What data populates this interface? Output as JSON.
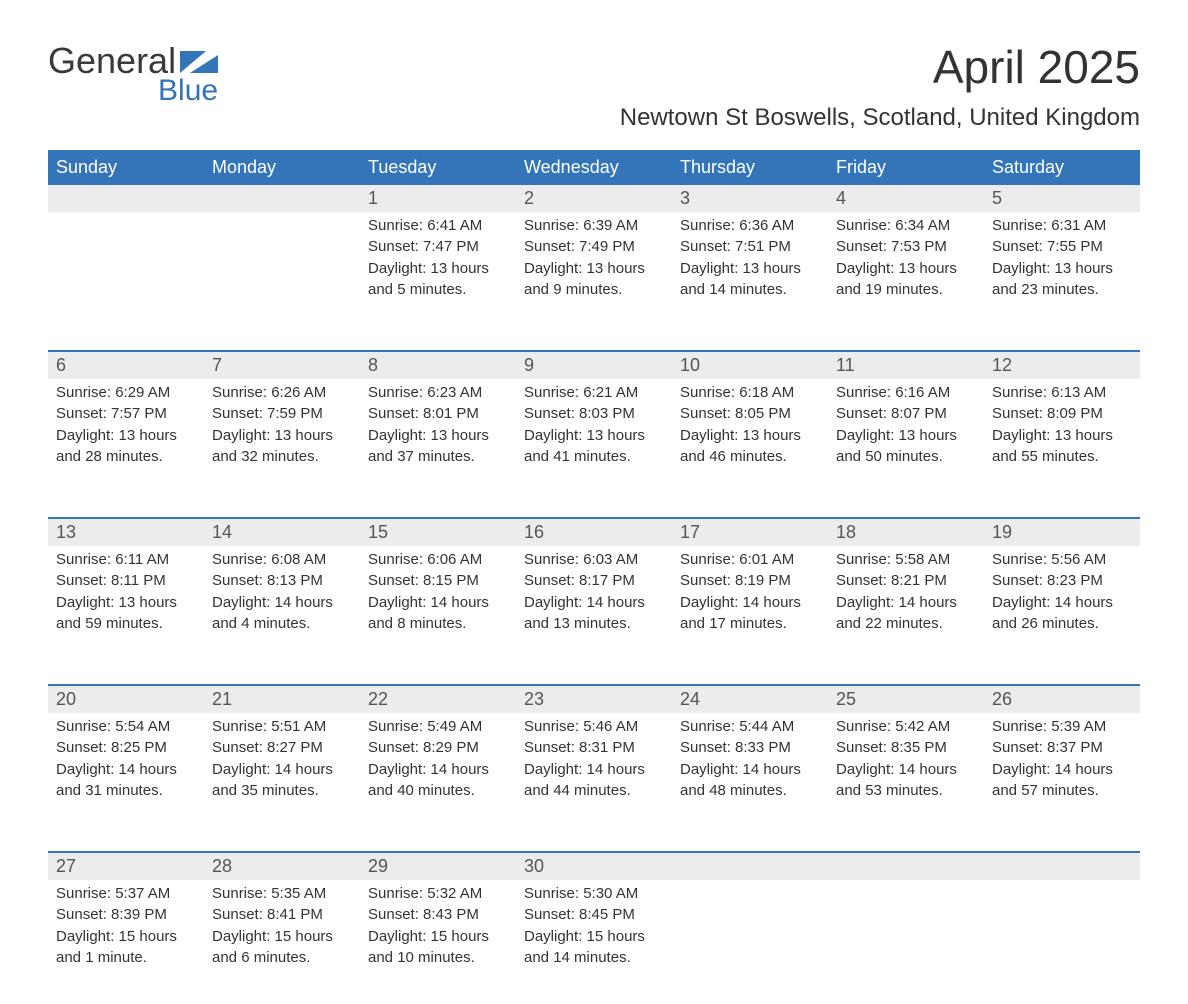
{
  "logo": {
    "line1": "General",
    "line2": "Blue"
  },
  "title": "April 2025",
  "location": "Newtown St Boswells, Scotland, United Kingdom",
  "day_names": [
    "Sunday",
    "Monday",
    "Tuesday",
    "Wednesday",
    "Thursday",
    "Friday",
    "Saturday"
  ],
  "colors": {
    "header_bg": "#3474b8",
    "header_text": "#ffffff",
    "daynum_bg": "#ececec",
    "text": "#333333",
    "logo_blue": "#3474b8",
    "week_divider": "#3474b8",
    "background": "#ffffff"
  },
  "typography": {
    "title_fontsize": 46,
    "location_fontsize": 24,
    "dayhead_fontsize": 18,
    "daynum_fontsize": 18,
    "body_fontsize": 15
  },
  "layout": {
    "columns": 7,
    "rows": 5,
    "leading_blanks": 2
  },
  "weeks": [
    [
      null,
      null,
      {
        "n": "1",
        "sunrise": "Sunrise: 6:41 AM",
        "sunset": "Sunset: 7:47 PM",
        "dl1": "Daylight: 13 hours",
        "dl2": "and 5 minutes."
      },
      {
        "n": "2",
        "sunrise": "Sunrise: 6:39 AM",
        "sunset": "Sunset: 7:49 PM",
        "dl1": "Daylight: 13 hours",
        "dl2": "and 9 minutes."
      },
      {
        "n": "3",
        "sunrise": "Sunrise: 6:36 AM",
        "sunset": "Sunset: 7:51 PM",
        "dl1": "Daylight: 13 hours",
        "dl2": "and 14 minutes."
      },
      {
        "n": "4",
        "sunrise": "Sunrise: 6:34 AM",
        "sunset": "Sunset: 7:53 PM",
        "dl1": "Daylight: 13 hours",
        "dl2": "and 19 minutes."
      },
      {
        "n": "5",
        "sunrise": "Sunrise: 6:31 AM",
        "sunset": "Sunset: 7:55 PM",
        "dl1": "Daylight: 13 hours",
        "dl2": "and 23 minutes."
      }
    ],
    [
      {
        "n": "6",
        "sunrise": "Sunrise: 6:29 AM",
        "sunset": "Sunset: 7:57 PM",
        "dl1": "Daylight: 13 hours",
        "dl2": "and 28 minutes."
      },
      {
        "n": "7",
        "sunrise": "Sunrise: 6:26 AM",
        "sunset": "Sunset: 7:59 PM",
        "dl1": "Daylight: 13 hours",
        "dl2": "and 32 minutes."
      },
      {
        "n": "8",
        "sunrise": "Sunrise: 6:23 AM",
        "sunset": "Sunset: 8:01 PM",
        "dl1": "Daylight: 13 hours",
        "dl2": "and 37 minutes."
      },
      {
        "n": "9",
        "sunrise": "Sunrise: 6:21 AM",
        "sunset": "Sunset: 8:03 PM",
        "dl1": "Daylight: 13 hours",
        "dl2": "and 41 minutes."
      },
      {
        "n": "10",
        "sunrise": "Sunrise: 6:18 AM",
        "sunset": "Sunset: 8:05 PM",
        "dl1": "Daylight: 13 hours",
        "dl2": "and 46 minutes."
      },
      {
        "n": "11",
        "sunrise": "Sunrise: 6:16 AM",
        "sunset": "Sunset: 8:07 PM",
        "dl1": "Daylight: 13 hours",
        "dl2": "and 50 minutes."
      },
      {
        "n": "12",
        "sunrise": "Sunrise: 6:13 AM",
        "sunset": "Sunset: 8:09 PM",
        "dl1": "Daylight: 13 hours",
        "dl2": "and 55 minutes."
      }
    ],
    [
      {
        "n": "13",
        "sunrise": "Sunrise: 6:11 AM",
        "sunset": "Sunset: 8:11 PM",
        "dl1": "Daylight: 13 hours",
        "dl2": "and 59 minutes."
      },
      {
        "n": "14",
        "sunrise": "Sunrise: 6:08 AM",
        "sunset": "Sunset: 8:13 PM",
        "dl1": "Daylight: 14 hours",
        "dl2": "and 4 minutes."
      },
      {
        "n": "15",
        "sunrise": "Sunrise: 6:06 AM",
        "sunset": "Sunset: 8:15 PM",
        "dl1": "Daylight: 14 hours",
        "dl2": "and 8 minutes."
      },
      {
        "n": "16",
        "sunrise": "Sunrise: 6:03 AM",
        "sunset": "Sunset: 8:17 PM",
        "dl1": "Daylight: 14 hours",
        "dl2": "and 13 minutes."
      },
      {
        "n": "17",
        "sunrise": "Sunrise: 6:01 AM",
        "sunset": "Sunset: 8:19 PM",
        "dl1": "Daylight: 14 hours",
        "dl2": "and 17 minutes."
      },
      {
        "n": "18",
        "sunrise": "Sunrise: 5:58 AM",
        "sunset": "Sunset: 8:21 PM",
        "dl1": "Daylight: 14 hours",
        "dl2": "and 22 minutes."
      },
      {
        "n": "19",
        "sunrise": "Sunrise: 5:56 AM",
        "sunset": "Sunset: 8:23 PM",
        "dl1": "Daylight: 14 hours",
        "dl2": "and 26 minutes."
      }
    ],
    [
      {
        "n": "20",
        "sunrise": "Sunrise: 5:54 AM",
        "sunset": "Sunset: 8:25 PM",
        "dl1": "Daylight: 14 hours",
        "dl2": "and 31 minutes."
      },
      {
        "n": "21",
        "sunrise": "Sunrise: 5:51 AM",
        "sunset": "Sunset: 8:27 PM",
        "dl1": "Daylight: 14 hours",
        "dl2": "and 35 minutes."
      },
      {
        "n": "22",
        "sunrise": "Sunrise: 5:49 AM",
        "sunset": "Sunset: 8:29 PM",
        "dl1": "Daylight: 14 hours",
        "dl2": "and 40 minutes."
      },
      {
        "n": "23",
        "sunrise": "Sunrise: 5:46 AM",
        "sunset": "Sunset: 8:31 PM",
        "dl1": "Daylight: 14 hours",
        "dl2": "and 44 minutes."
      },
      {
        "n": "24",
        "sunrise": "Sunrise: 5:44 AM",
        "sunset": "Sunset: 8:33 PM",
        "dl1": "Daylight: 14 hours",
        "dl2": "and 48 minutes."
      },
      {
        "n": "25",
        "sunrise": "Sunrise: 5:42 AM",
        "sunset": "Sunset: 8:35 PM",
        "dl1": "Daylight: 14 hours",
        "dl2": "and 53 minutes."
      },
      {
        "n": "26",
        "sunrise": "Sunrise: 5:39 AM",
        "sunset": "Sunset: 8:37 PM",
        "dl1": "Daylight: 14 hours",
        "dl2": "and 57 minutes."
      }
    ],
    [
      {
        "n": "27",
        "sunrise": "Sunrise: 5:37 AM",
        "sunset": "Sunset: 8:39 PM",
        "dl1": "Daylight: 15 hours",
        "dl2": "and 1 minute."
      },
      {
        "n": "28",
        "sunrise": "Sunrise: 5:35 AM",
        "sunset": "Sunset: 8:41 PM",
        "dl1": "Daylight: 15 hours",
        "dl2": "and 6 minutes."
      },
      {
        "n": "29",
        "sunrise": "Sunrise: 5:32 AM",
        "sunset": "Sunset: 8:43 PM",
        "dl1": "Daylight: 15 hours",
        "dl2": "and 10 minutes."
      },
      {
        "n": "30",
        "sunrise": "Sunrise: 5:30 AM",
        "sunset": "Sunset: 8:45 PM",
        "dl1": "Daylight: 15 hours",
        "dl2": "and 14 minutes."
      },
      null,
      null,
      null
    ]
  ]
}
